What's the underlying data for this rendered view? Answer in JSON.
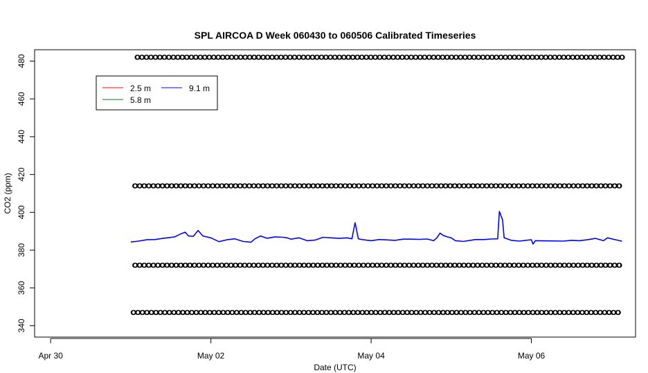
{
  "chart_data": {
    "type": "line",
    "title": "SPL AIRCOA D  Week 060430 to 060506  Calibrated Timeseries",
    "xlabel": "Date (UTC)",
    "ylabel": "CO2 (ppm)",
    "x_ticks": [
      "Apr 30",
      "May 02",
      "May 04",
      "May 06"
    ],
    "x_tick_values": [
      0,
      2,
      4,
      6
    ],
    "xlim": [
      -0.2,
      7.3
    ],
    "ylim": [
      334,
      486
    ],
    "y_ticks": [
      340,
      360,
      380,
      400,
      420,
      440,
      460,
      480
    ],
    "grid": false,
    "legend_position": "top-left",
    "legend": [
      {
        "name": "2.5 m",
        "color": "#ff0000"
      },
      {
        "name": "5.8 m",
        "color": "#008000"
      },
      {
        "name": "9.1 m",
        "color": "#0000ff"
      }
    ],
    "series": [
      {
        "name": "9.1 m",
        "color": "#0000ff",
        "points": [
          [
            1.0,
            384.3
          ],
          [
            1.1,
            384.8
          ],
          [
            1.2,
            385.5
          ],
          [
            1.3,
            385.6
          ],
          [
            1.4,
            386.2
          ],
          [
            1.55,
            387.0
          ],
          [
            1.62,
            388.5
          ],
          [
            1.68,
            389.5
          ],
          [
            1.72,
            387.5
          ],
          [
            1.78,
            387.3
          ],
          [
            1.84,
            390.4
          ],
          [
            1.9,
            387.5
          ],
          [
            2.0,
            386.5
          ],
          [
            2.1,
            384.5
          ],
          [
            2.2,
            385.5
          ],
          [
            2.3,
            386.0
          ],
          [
            2.4,
            384.6
          ],
          [
            2.5,
            384.2
          ],
          [
            2.55,
            386.0
          ],
          [
            2.62,
            387.5
          ],
          [
            2.7,
            386.3
          ],
          [
            2.8,
            387.0
          ],
          [
            2.9,
            386.8
          ],
          [
            2.95,
            386.5
          ],
          [
            3.0,
            385.8
          ],
          [
            3.1,
            386.5
          ],
          [
            3.2,
            385.0
          ],
          [
            3.3,
            385.3
          ],
          [
            3.4,
            386.8
          ],
          [
            3.5,
            386.5
          ],
          [
            3.6,
            386.2
          ],
          [
            3.7,
            386.5
          ],
          [
            3.76,
            386.0
          ],
          [
            3.8,
            394.5
          ],
          [
            3.84,
            386.0
          ],
          [
            3.9,
            385.5
          ],
          [
            4.0,
            385.0
          ],
          [
            4.1,
            385.6
          ],
          [
            4.2,
            385.4
          ],
          [
            4.3,
            385.2
          ],
          [
            4.4,
            385.8
          ],
          [
            4.5,
            385.8
          ],
          [
            4.6,
            385.7
          ],
          [
            4.7,
            385.9
          ],
          [
            4.78,
            385.0
          ],
          [
            4.82,
            386.5
          ],
          [
            4.86,
            389.0
          ],
          [
            4.9,
            387.8
          ],
          [
            4.95,
            387.0
          ],
          [
            5.0,
            386.5
          ],
          [
            5.05,
            385.0
          ],
          [
            5.15,
            384.6
          ],
          [
            5.3,
            385.6
          ],
          [
            5.4,
            385.6
          ],
          [
            5.5,
            385.9
          ],
          [
            5.58,
            386.0
          ],
          [
            5.6,
            400.5
          ],
          [
            5.64,
            396.0
          ],
          [
            5.66,
            386.5
          ],
          [
            5.75,
            385.2
          ],
          [
            5.85,
            384.8
          ],
          [
            6.0,
            385.5
          ],
          [
            6.02,
            383.2
          ],
          [
            6.05,
            385.0
          ],
          [
            6.2,
            384.9
          ],
          [
            6.4,
            384.8
          ],
          [
            6.5,
            385.2
          ],
          [
            6.6,
            385.0
          ],
          [
            6.7,
            385.5
          ],
          [
            6.8,
            386.2
          ],
          [
            6.9,
            385.0
          ],
          [
            6.95,
            386.5
          ],
          [
            7.0,
            386.0
          ],
          [
            7.1,
            385.0
          ],
          [
            7.13,
            384.7
          ]
        ]
      }
    ],
    "calibration_levels": [
      {
        "value": 482,
        "start": 1.08,
        "end": 7.13,
        "step": 0.056
      },
      {
        "value": 414,
        "start": 1.05,
        "end": 7.13,
        "step": 0.057
      },
      {
        "value": 372,
        "start": 1.05,
        "end": 7.13,
        "step": 0.057
      },
      {
        "value": 347,
        "start": 1.03,
        "end": 7.13,
        "step": 0.056
      }
    ]
  }
}
